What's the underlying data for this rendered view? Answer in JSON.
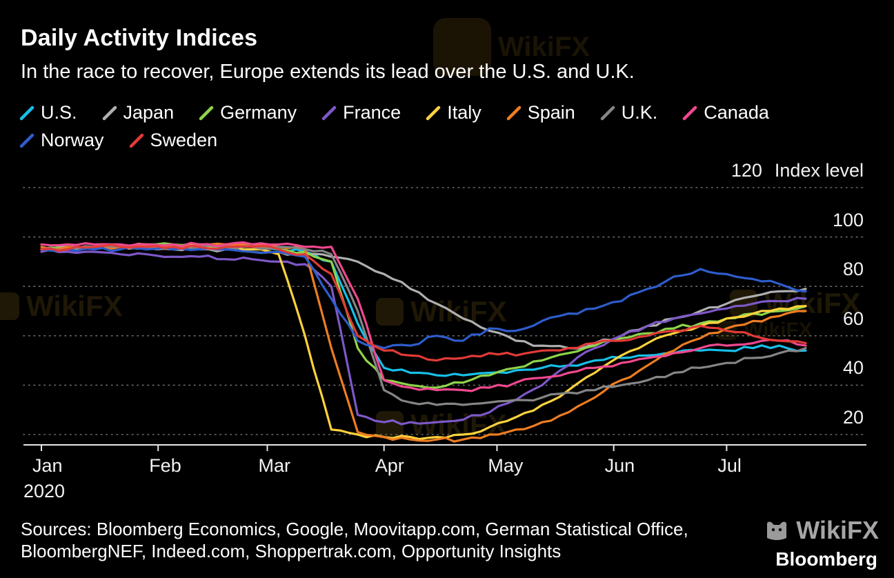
{
  "title": "Daily Activity Indices",
  "subtitle": "In the race to recover, Europe extends its lead over the U.S. and U.K.",
  "watermark": {
    "text": "WikiFX"
  },
  "footer": {
    "sources_line1": "Sources: Bloomberg Economics, Google, Moovitapp.com, German Statistical Office,",
    "sources_line2": "BloombergNEF, Indeed.com, Shoppertrak.com, Opportunity Insights",
    "bloomberg": "Bloomberg"
  },
  "chart_data": {
    "type": "line",
    "title": "Daily Activity Indices",
    "ylabel": "Index level",
    "yticks": [
      120,
      100,
      80,
      60,
      40,
      20
    ],
    "ylim": [
      15,
      125
    ],
    "grid": "dotted-horizontal",
    "grid_color": "#6f6f6f",
    "legend_position": "top",
    "x_year_label": "2020",
    "x_month_labels": [
      "Jan",
      "Feb",
      "Mar",
      "Apr",
      "May",
      "Jun",
      "Jul"
    ],
    "x_month_days": [
      0,
      31,
      60,
      91,
      121,
      152,
      182
    ],
    "x_day_of_year": [
      0,
      7,
      14,
      21,
      28,
      35,
      42,
      49,
      56,
      63,
      70,
      77,
      84,
      91,
      98,
      105,
      112,
      119,
      126,
      133,
      140,
      147,
      154,
      161,
      168,
      175,
      182,
      189,
      196,
      203
    ],
    "series": [
      {
        "name": "U.S.",
        "color": "#17c0e9",
        "values": [
          95,
          95,
          96,
          96,
          96,
          96,
          96,
          96,
          96,
          95,
          94,
          90,
          65,
          47,
          45,
          44,
          44,
          45,
          46,
          47,
          48,
          50,
          51,
          52,
          53,
          54,
          54,
          55,
          56,
          54
        ]
      },
      {
        "name": "Japan",
        "color": "#b0b0b0",
        "values": [
          95,
          96,
          96,
          96,
          96,
          95,
          95,
          95,
          94,
          94,
          93,
          92,
          90,
          85,
          79,
          73,
          67,
          62,
          58,
          56,
          55,
          57,
          60,
          64,
          67,
          70,
          73,
          76,
          78,
          79
        ]
      },
      {
        "name": "Germany",
        "color": "#8ed44b",
        "values": [
          95,
          95,
          96,
          96,
          97,
          97,
          97,
          96,
          96,
          95,
          94,
          90,
          55,
          42,
          40,
          39,
          41,
          44,
          47,
          50,
          53,
          56,
          59,
          61,
          63,
          65,
          67,
          69,
          70,
          72
        ]
      },
      {
        "name": "France",
        "color": "#7d58c8",
        "values": [
          94,
          94,
          94,
          93,
          93,
          92,
          92,
          91,
          91,
          90,
          89,
          80,
          28,
          25,
          25,
          25,
          26,
          29,
          34,
          40,
          48,
          55,
          60,
          64,
          67,
          69,
          71,
          73,
          74,
          75
        ]
      },
      {
        "name": "Italy",
        "color": "#ffd33c",
        "values": [
          95,
          95,
          96,
          96,
          96,
          96,
          96,
          96,
          95,
          93,
          60,
          22,
          20,
          19,
          19,
          19,
          20,
          23,
          27,
          32,
          38,
          45,
          52,
          57,
          61,
          64,
          67,
          69,
          71,
          72
        ]
      },
      {
        "name": "Spain",
        "color": "#ee7d21",
        "values": [
          96,
          96,
          96,
          96,
          96,
          96,
          97,
          97,
          97,
          96,
          95,
          55,
          21,
          19,
          18,
          18,
          18,
          20,
          22,
          25,
          29,
          35,
          42,
          48,
          54,
          59,
          63,
          66,
          68,
          70
        ]
      },
      {
        "name": "U.K.",
        "color": "#858585",
        "values": [
          95,
          95,
          96,
          96,
          96,
          96,
          96,
          96,
          96,
          96,
          95,
          93,
          70,
          38,
          33,
          32,
          32,
          33,
          34,
          35,
          37,
          38,
          40,
          42,
          45,
          47,
          49,
          51,
          53,
          55
        ]
      },
      {
        "name": "Canada",
        "color": "#f0488f",
        "values": [
          97,
          97,
          97,
          97,
          97,
          97,
          97,
          97,
          97,
          97,
          96,
          96,
          75,
          42,
          39,
          38,
          38,
          39,
          41,
          43,
          45,
          47,
          49,
          51,
          53,
          55,
          56,
          57,
          58,
          56
        ]
      },
      {
        "name": "Norway",
        "color": "#2e5dcc",
        "values": [
          95,
          95,
          95,
          95,
          95,
          95,
          95,
          95,
          94,
          94,
          92,
          75,
          58,
          55,
          56,
          60,
          58,
          63,
          62,
          66,
          69,
          71,
          74,
          79,
          84,
          87,
          85,
          83,
          81,
          78
        ]
      },
      {
        "name": "Sweden",
        "color": "#e23b38",
        "values": [
          95,
          95,
          96,
          96,
          96,
          96,
          96,
          96,
          96,
          95,
          93,
          85,
          60,
          54,
          52,
          50,
          51,
          53,
          52,
          54,
          55,
          57,
          58,
          60,
          62,
          64,
          62,
          60,
          58,
          57
        ]
      }
    ]
  }
}
